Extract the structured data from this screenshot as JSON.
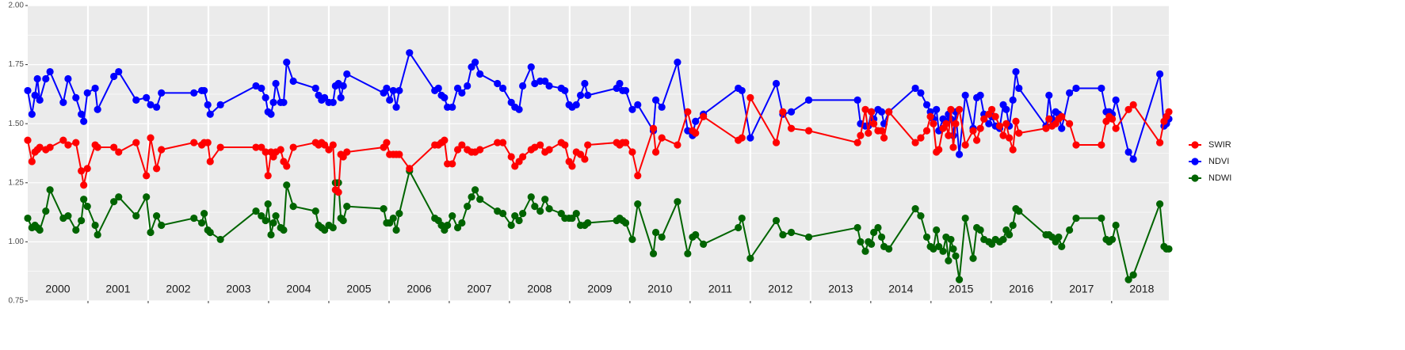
{
  "chart_data": {
    "type": "line",
    "xlim": [
      2000,
      2018.95
    ],
    "ylim": [
      0.75,
      2.0
    ],
    "yticks": [
      {
        "value": 0.75,
        "label": "0.75"
      },
      {
        "value": 1.0,
        "label": "1.00"
      },
      {
        "value": 1.25,
        "label": "1.25"
      },
      {
        "value": 1.5,
        "label": "1.50"
      },
      {
        "value": 1.75,
        "label": "1.75"
      },
      {
        "value": 2.0,
        "label": "2.00"
      }
    ],
    "year_boundaries": [
      2001,
      2002,
      2003,
      2004,
      2005,
      2006,
      2007,
      2008,
      2009,
      2010,
      2011,
      2012,
      2013,
      2014,
      2015,
      2016,
      2017,
      2018
    ],
    "year_labels": [
      {
        "value": 2000.5,
        "label": "2000"
      },
      {
        "value": 2001.5,
        "label": "2001"
      },
      {
        "value": 2002.5,
        "label": "2002"
      },
      {
        "value": 2003.5,
        "label": "2003"
      },
      {
        "value": 2004.5,
        "label": "2004"
      },
      {
        "value": 2005.5,
        "label": "2005"
      },
      {
        "value": 2006.5,
        "label": "2006"
      },
      {
        "value": 2007.5,
        "label": "2007"
      },
      {
        "value": 2008.5,
        "label": "2008"
      },
      {
        "value": 2009.5,
        "label": "2009"
      },
      {
        "value": 2010.5,
        "label": "2010"
      },
      {
        "value": 2011.5,
        "label": "2011"
      },
      {
        "value": 2012.5,
        "label": "2012"
      },
      {
        "value": 2013.5,
        "label": "2013"
      },
      {
        "value": 2014.5,
        "label": "2014"
      },
      {
        "value": 2015.5,
        "label": "2015"
      },
      {
        "value": 2016.5,
        "label": "2016"
      },
      {
        "value": 2017.5,
        "label": "2017"
      },
      {
        "value": 2018.5,
        "label": "2018"
      }
    ],
    "grid": true,
    "legend": "right",
    "x": [
      2000.0,
      2000.07,
      2000.12,
      2000.16,
      2000.2,
      2000.3,
      2000.37,
      2000.59,
      2000.67,
      2000.8,
      2000.89,
      2000.93,
      2000.99,
      2001.12,
      2001.16,
      2001.43,
      2001.51,
      2001.8,
      2001.97,
      2002.04,
      2002.14,
      2002.22,
      2002.76,
      2002.89,
      2002.93,
      2002.99,
      2003.03,
      2003.2,
      2003.79,
      2003.88,
      2003.95,
      2003.99,
      2004.04,
      2004.08,
      2004.12,
      2004.2,
      2004.25,
      2004.3,
      2004.41,
      2004.78,
      2004.83,
      2004.88,
      2004.93,
      2005.0,
      2005.07,
      2005.11,
      2005.16,
      2005.2,
      2005.24,
      2005.3,
      2005.91,
      2005.96,
      2006.01,
      2006.07,
      2006.12,
      2006.17,
      2006.34,
      2006.76,
      2006.82,
      2006.87,
      2006.92,
      2006.97,
      2007.05,
      2007.14,
      2007.21,
      2007.3,
      2007.37,
      2007.43,
      2007.51,
      2007.8,
      2007.89,
      2008.03,
      2008.09,
      2008.16,
      2008.22,
      2008.36,
      2008.42,
      2008.51,
      2008.59,
      2008.66,
      2008.86,
      2008.92,
      2008.99,
      2009.04,
      2009.11,
      2009.18,
      2009.25,
      2009.3,
      2009.78,
      2009.83,
      2009.88,
      2009.93,
      2010.04,
      2010.13,
      2010.39,
      2010.43,
      2010.53,
      2010.79,
      2010.96,
      2011.04,
      2011.09,
      2011.22,
      2011.8,
      2011.86,
      2012.0,
      2012.43,
      2012.54,
      2012.68,
      2012.97,
      2013.78,
      2013.83,
      2013.91,
      2013.96,
      2014.01,
      2014.05,
      2014.12,
      2014.18,
      2014.22,
      2014.3,
      2014.74,
      2014.83,
      2014.93,
      2014.99,
      2015.04,
      2015.09,
      2015.13,
      2015.2,
      2015.25,
      2015.29,
      2015.33,
      2015.37,
      2015.41,
      2015.47,
      2015.57,
      2015.7,
      2015.76,
      2015.82,
      2015.88,
      2015.96,
      2016.01,
      2016.07,
      2016.14,
      2016.2,
      2016.25,
      2016.3,
      2016.36,
      2016.41,
      2016.46,
      2016.91,
      2016.96,
      2017.01,
      2017.07,
      2017.12,
      2017.17,
      2017.3,
      2017.41,
      2017.83,
      2017.91,
      2017.96,
      2018.01,
      2018.07,
      2018.28,
      2018.36,
      2018.8,
      2018.87,
      2018.91,
      2018.95
    ],
    "series": [
      {
        "name": "SWIR",
        "color": "#ff0000",
        "values": [
          1.43,
          1.34,
          1.38,
          1.39,
          1.4,
          1.39,
          1.4,
          1.43,
          1.41,
          1.42,
          1.3,
          1.24,
          1.31,
          1.41,
          1.4,
          1.4,
          1.38,
          1.42,
          1.28,
          1.44,
          1.31,
          1.39,
          1.42,
          1.41,
          1.42,
          1.42,
          1.34,
          1.4,
          1.4,
          1.4,
          1.38,
          1.28,
          1.38,
          1.36,
          1.38,
          1.39,
          1.34,
          1.32,
          1.4,
          1.42,
          1.41,
          1.42,
          1.41,
          1.39,
          1.41,
          1.22,
          1.21,
          1.37,
          1.36,
          1.38,
          1.4,
          1.42,
          1.37,
          1.37,
          1.37,
          1.37,
          1.31,
          1.41,
          1.41,
          1.42,
          1.43,
          1.33,
          1.33,
          1.39,
          1.41,
          1.39,
          1.38,
          1.38,
          1.39,
          1.42,
          1.42,
          1.36,
          1.32,
          1.34,
          1.36,
          1.39,
          1.4,
          1.41,
          1.38,
          1.39,
          1.42,
          1.41,
          1.34,
          1.32,
          1.38,
          1.37,
          1.35,
          1.41,
          1.42,
          1.41,
          1.42,
          1.42,
          1.38,
          1.28,
          1.48,
          1.38,
          1.44,
          1.41,
          1.55,
          1.47,
          1.46,
          1.53,
          1.43,
          1.44,
          1.61,
          1.42,
          1.55,
          1.48,
          1.47,
          1.42,
          1.45,
          1.56,
          1.46,
          1.55,
          1.5,
          1.47,
          1.47,
          1.44,
          1.55,
          1.42,
          1.44,
          1.47,
          1.53,
          1.5,
          1.38,
          1.39,
          1.48,
          1.5,
          1.45,
          1.56,
          1.4,
          1.5,
          1.56,
          1.41,
          1.47,
          1.43,
          1.48,
          1.52,
          1.54,
          1.56,
          1.53,
          1.49,
          1.45,
          1.5,
          1.44,
          1.39,
          1.51,
          1.46,
          1.48,
          1.52,
          1.49,
          1.5,
          1.52,
          1.53,
          1.5,
          1.41,
          1.41,
          1.51,
          1.53,
          1.52,
          1.48,
          1.56,
          1.58,
          1.42,
          1.51,
          1.53,
          1.55
        ]
      },
      {
        "name": "NDVI",
        "color": "#0000ff",
        "values": [
          1.64,
          1.54,
          1.62,
          1.69,
          1.6,
          1.69,
          1.72,
          1.59,
          1.69,
          1.61,
          1.54,
          1.51,
          1.63,
          1.65,
          1.56,
          1.7,
          1.72,
          1.6,
          1.61,
          1.58,
          1.57,
          1.63,
          1.63,
          1.64,
          1.64,
          1.58,
          1.54,
          1.58,
          1.66,
          1.65,
          1.61,
          1.55,
          1.54,
          1.59,
          1.67,
          1.59,
          1.59,
          1.76,
          1.68,
          1.65,
          1.62,
          1.6,
          1.61,
          1.59,
          1.59,
          1.66,
          1.67,
          1.61,
          1.66,
          1.71,
          1.63,
          1.65,
          1.6,
          1.64,
          1.57,
          1.64,
          1.8,
          1.64,
          1.65,
          1.62,
          1.61,
          1.57,
          1.57,
          1.65,
          1.63,
          1.66,
          1.74,
          1.76,
          1.71,
          1.67,
          1.65,
          1.59,
          1.57,
          1.56,
          1.66,
          1.74,
          1.67,
          1.68,
          1.68,
          1.66,
          1.65,
          1.64,
          1.58,
          1.57,
          1.58,
          1.62,
          1.67,
          1.62,
          1.65,
          1.67,
          1.64,
          1.64,
          1.56,
          1.58,
          1.47,
          1.6,
          1.57,
          1.76,
          1.47,
          1.45,
          1.51,
          1.54,
          1.65,
          1.64,
          1.44,
          1.67,
          1.54,
          1.55,
          1.6,
          1.6,
          1.5,
          1.49,
          1.49,
          1.55,
          1.52,
          1.56,
          1.55,
          1.5,
          1.55,
          1.65,
          1.63,
          1.58,
          1.55,
          1.52,
          1.56,
          1.47,
          1.52,
          1.51,
          1.54,
          1.52,
          1.45,
          1.55,
          1.37,
          1.62,
          1.48,
          1.61,
          1.62,
          1.54,
          1.5,
          1.53,
          1.49,
          1.48,
          1.58,
          1.56,
          1.49,
          1.6,
          1.72,
          1.65,
          1.49,
          1.62,
          1.52,
          1.55,
          1.54,
          1.48,
          1.63,
          1.65,
          1.65,
          1.55,
          1.55,
          1.54,
          1.6,
          1.38,
          1.35,
          1.71,
          1.49,
          1.5,
          1.52
        ]
      },
      {
        "name": "NDWI",
        "color": "#006400",
        "values": [
          1.1,
          1.06,
          1.07,
          1.06,
          1.05,
          1.13,
          1.22,
          1.1,
          1.11,
          1.05,
          1.09,
          1.18,
          1.15,
          1.07,
          1.03,
          1.17,
          1.19,
          1.11,
          1.19,
          1.04,
          1.11,
          1.07,
          1.1,
          1.08,
          1.12,
          1.05,
          1.04,
          1.01,
          1.13,
          1.11,
          1.09,
          1.16,
          1.03,
          1.08,
          1.11,
          1.06,
          1.05,
          1.24,
          1.15,
          1.13,
          1.07,
          1.06,
          1.05,
          1.07,
          1.06,
          1.25,
          1.25,
          1.1,
          1.09,
          1.15,
          1.14,
          1.08,
          1.08,
          1.1,
          1.05,
          1.12,
          1.3,
          1.1,
          1.09,
          1.07,
          1.05,
          1.07,
          1.11,
          1.06,
          1.08,
          1.15,
          1.19,
          1.22,
          1.18,
          1.13,
          1.12,
          1.07,
          1.11,
          1.09,
          1.12,
          1.19,
          1.15,
          1.13,
          1.18,
          1.14,
          1.12,
          1.1,
          1.1,
          1.1,
          1.12,
          1.07,
          1.07,
          1.08,
          1.09,
          1.1,
          1.09,
          1.08,
          1.01,
          1.16,
          0.95,
          1.04,
          1.02,
          1.17,
          0.95,
          1.02,
          1.03,
          0.99,
          1.06,
          1.1,
          0.93,
          1.09,
          1.03,
          1.04,
          1.02,
          1.06,
          1.0,
          0.96,
          1.0,
          0.99,
          1.04,
          1.06,
          1.02,
          0.98,
          0.97,
          1.14,
          1.11,
          1.02,
          0.98,
          0.97,
          1.05,
          0.98,
          0.96,
          1.02,
          0.92,
          1.01,
          0.97,
          0.94,
          0.84,
          1.1,
          0.93,
          1.06,
          1.05,
          1.01,
          1.0,
          0.99,
          1.01,
          1.0,
          1.01,
          1.05,
          1.03,
          1.07,
          1.14,
          1.13,
          1.03,
          1.03,
          1.02,
          1.0,
          1.02,
          0.98,
          1.05,
          1.1,
          1.1,
          1.01,
          1.0,
          1.01,
          1.07,
          0.84,
          0.86,
          1.16,
          0.98,
          0.97,
          0.97
        ]
      }
    ]
  }
}
